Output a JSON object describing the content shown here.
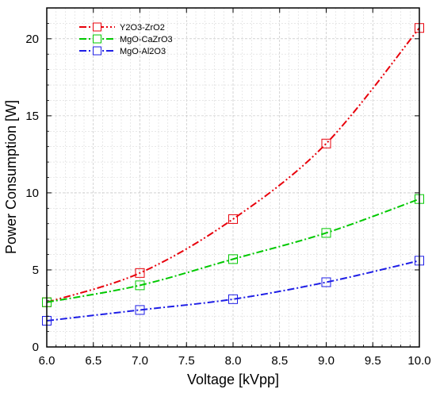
{
  "chart_data": {
    "type": "line",
    "title": "",
    "xlabel": "Voltage [kVpp]",
    "ylabel": "Power Consumption [W]",
    "xlim": [
      6.0,
      10.0
    ],
    "ylim": [
      0,
      22
    ],
    "x_ticks": [
      "6.0",
      "6.5",
      "7.0",
      "7.5",
      "8.0",
      "8.5",
      "9.0",
      "9.5",
      "10.0"
    ],
    "y_ticks": [
      "0",
      "5",
      "10",
      "15",
      "20"
    ],
    "x_tick_values": [
      6.0,
      6.5,
      7.0,
      7.5,
      8.0,
      8.5,
      9.0,
      9.5,
      10.0
    ],
    "y_tick_values": [
      0,
      5,
      10,
      15,
      20
    ],
    "grid": true,
    "legend_position": "top-left",
    "marker": "open-square",
    "x": [
      6.0,
      7.0,
      8.0,
      9.0,
      10.0
    ],
    "series": [
      {
        "name": "Y2O3-ZrO2",
        "values": [
          2.9,
          4.8,
          8.3,
          13.2,
          20.7
        ],
        "color": "#e8000b",
        "dash": "dash-dot-dot"
      },
      {
        "name": "MgO-CaZrO3",
        "values": [
          2.9,
          4.0,
          5.7,
          7.4,
          9.6
        ],
        "color": "#00c800",
        "dash": "dash-dot"
      },
      {
        "name": "MgO-Al2O3",
        "values": [
          1.7,
          2.4,
          3.1,
          4.2,
          5.6
        ],
        "color": "#1e1ee6",
        "dash": "dash-dot"
      }
    ]
  }
}
